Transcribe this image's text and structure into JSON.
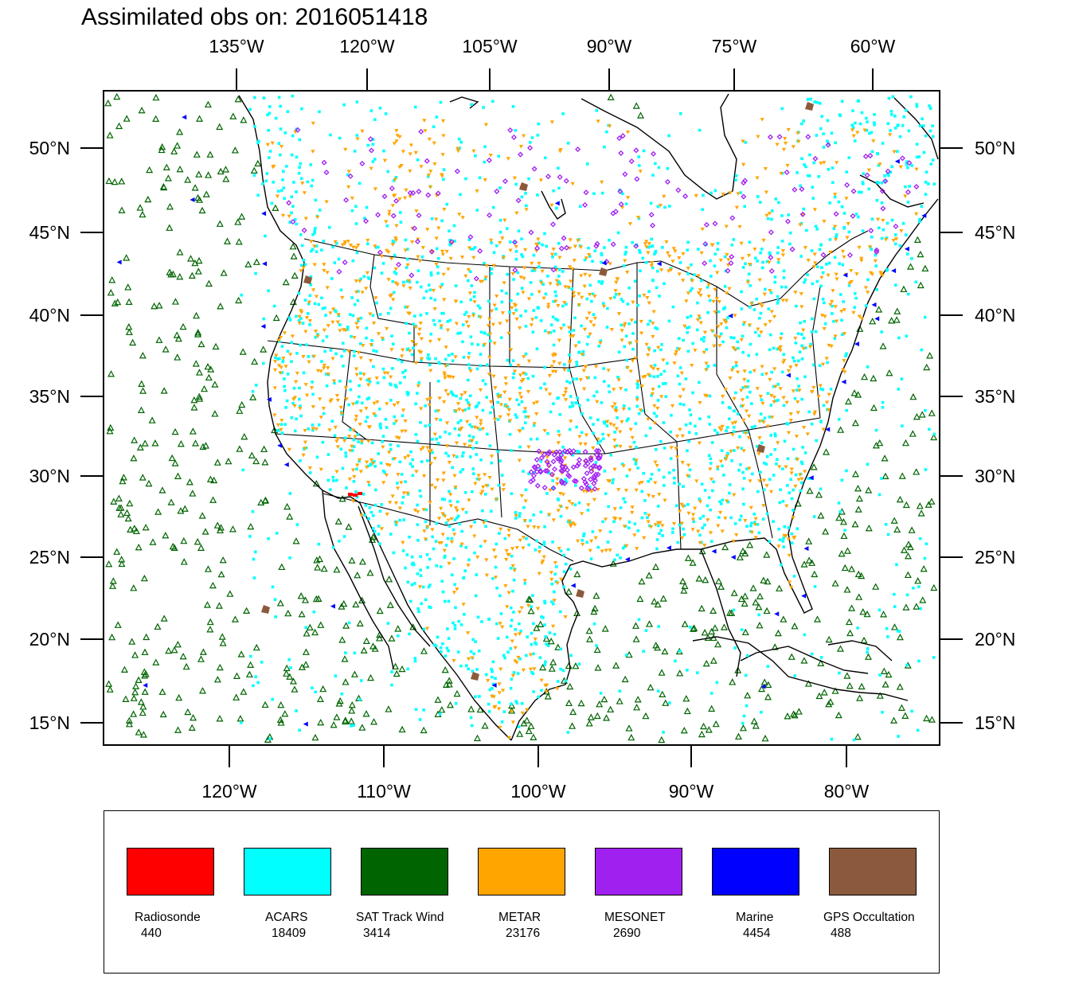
{
  "title": "Assimilated obs on: 2016051418",
  "map": {
    "top_lon_ticks": [
      "135°W",
      "120°W",
      "105°W",
      "90°W",
      "75°W",
      "60°W"
    ],
    "bottom_lon_ticks": [
      "120°W",
      "110°W",
      "100°W",
      "90°W",
      "80°W"
    ],
    "lat_ticks": [
      "50°N",
      "45°N",
      "40°N",
      "35°N",
      "30°N",
      "25°N",
      "20°N",
      "15°N"
    ],
    "lon_range": [
      -128,
      -74
    ],
    "lat_range": [
      14,
      53
    ]
  },
  "legend": [
    {
      "label": "Radiosonde",
      "count": "440",
      "color": "#ff0000"
    },
    {
      "label": "ACARS",
      "count": "18409",
      "color": "#00ffff"
    },
    {
      "label": "SAT Track Wind",
      "count": "3414",
      "color": "#006400"
    },
    {
      "label": "METAR",
      "count": "23176",
      "color": "#ffa500"
    },
    {
      "label": "MESONET",
      "count": "2690",
      "color": "#a020f0"
    },
    {
      "label": "Marine",
      "count": "4454",
      "color": "#0000ff"
    },
    {
      "label": "GPS Occultation",
      "count": "488",
      "color": "#8b5a3c"
    }
  ]
}
